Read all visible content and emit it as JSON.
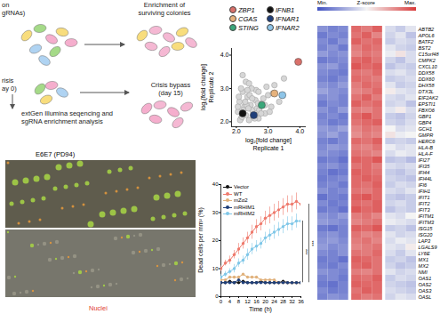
{
  "schematic": {
    "top_left": [
      "on",
      "gRNAs)"
    ],
    "top_right": [
      "Enrichment of",
      "surviving colonies"
    ],
    "mid_left": [
      "risis",
      "ay 0)"
    ],
    "mid_right": [
      "Crisis bypass",
      "(day 15)"
    ],
    "bottom": [
      "extGen Illumina seqencing and",
      "sgRNA enrichment analysis"
    ]
  },
  "image": {
    "title": "E6E7 (PD94)",
    "channel": "Nuclei"
  },
  "chart_data": [
    {
      "type": "scatter",
      "xlabel": [
        "log₂[fold change]",
        "Replicate 1"
      ],
      "ylabel": [
        "log₂[fold change]",
        "Replicate 2"
      ],
      "xlim": [
        1.85,
        4.2
      ],
      "ylim": [
        1.85,
        4.2
      ],
      "xticks": [
        2,
        3,
        4
      ],
      "yticks": [
        2,
        3,
        4
      ],
      "legend": "top",
      "background": {
        "color": "#d6d6d6",
        "x": [
          2.05,
          2.1,
          2.15,
          2.2,
          2.25,
          2.3,
          2.35,
          2.4,
          2.45,
          2.5,
          2.55,
          2.6,
          2.65,
          2.7,
          2.8,
          2.9,
          3.0,
          3.1,
          3.2,
          3.35,
          2.12,
          2.22,
          2.32,
          2.42,
          2.52,
          2.62,
          2.72,
          2.85,
          2.95,
          3.05,
          2.08,
          2.18,
          2.28,
          2.38,
          2.48,
          2.58,
          2.68,
          2.78,
          2.3,
          2.5,
          2.7,
          2.9,
          3.15,
          3.5,
          2.2,
          2.4,
          2.6,
          2.05,
          2.15,
          2.35
        ],
        "y": [
          2.3,
          2.6,
          2.1,
          2.9,
          2.45,
          2.2,
          2.75,
          2.05,
          2.5,
          2.35,
          2.15,
          2.65,
          2.4,
          2.1,
          2.55,
          2.25,
          2.8,
          2.45,
          3.1,
          2.6,
          2.05,
          2.35,
          2.5,
          2.8,
          2.2,
          2.95,
          2.35,
          2.7,
          3.05,
          2.3,
          2.75,
          2.15,
          2.6,
          2.4,
          3.0,
          2.1,
          2.55,
          2.25,
          3.2,
          2.7,
          2.9,
          2.5,
          2.85,
          3.3,
          3.4,
          3.15,
          2.2,
          2.45,
          3.0,
          2.95
        ]
      },
      "highlights": [
        {
          "name": "ZBP1",
          "color": "#d9706a",
          "x": 3.95,
          "y": 3.8
        },
        {
          "name": "CGAS",
          "color": "#e6b27c",
          "x": 3.2,
          "y": 2.85
        },
        {
          "name": "STING",
          "color": "#3aa77a",
          "x": 2.8,
          "y": 2.5
        },
        {
          "name": "IFNB1",
          "color": "#111111",
          "x": 2.2,
          "y": 2.25
        },
        {
          "name": "IFNAR1",
          "color": "#1f3f7a",
          "x": 2.55,
          "y": 2.2
        },
        {
          "name": "IFNAR2",
          "color": "#8ec5e8",
          "x": 3.45,
          "y": 2.8
        }
      ]
    },
    {
      "type": "line",
      "xlabel": "Time (h)",
      "ylabel": "Dead cells per mm² (%)",
      "xlim": [
        0,
        36
      ],
      "ylim": [
        0,
        40
      ],
      "xticks": [
        0,
        4,
        8,
        12,
        16,
        20,
        24,
        28,
        32,
        36
      ],
      "yticks": [
        0,
        10,
        20,
        30,
        40
      ],
      "legend": "top-left",
      "marker": "circle",
      "x": [
        0,
        2,
        4,
        6,
        8,
        10,
        12,
        14,
        16,
        18,
        20,
        22,
        24,
        26,
        28,
        30,
        32,
        34,
        36
      ],
      "series": [
        {
          "name": "Vector",
          "color": "#111111",
          "values": [
            5,
            5,
            5.5,
            5,
            5,
            5.5,
            5,
            5,
            5,
            5.5,
            5,
            5,
            5,
            5,
            5.5,
            5,
            5,
            5,
            5
          ]
        },
        {
          "name": "WT",
          "color": "#ef7a6d",
          "values": [
            10,
            12,
            13,
            15,
            17,
            19,
            21,
            23,
            25,
            26,
            28,
            29,
            30,
            31,
            32,
            33,
            33,
            34,
            33
          ],
          "errors": [
            1,
            1,
            1.5,
            1.5,
            2,
            2,
            2,
            2.5,
            2.5,
            2.5,
            2.5,
            3,
            3,
            3,
            3,
            3,
            3,
            3,
            3
          ]
        },
        {
          "name": "mZα2",
          "color": "#e0b07a",
          "values": [
            6,
            6,
            7,
            7,
            7,
            8,
            7,
            7,
            7,
            6,
            6,
            6,
            6,
            5,
            5,
            5,
            5,
            5,
            5
          ]
        },
        {
          "name": "mRHIM1",
          "color": "#1f3f7a",
          "values": [
            5,
            5,
            5,
            5,
            6,
            5,
            5,
            5,
            5,
            5,
            5,
            5,
            5,
            5,
            5,
            5,
            5,
            5,
            5
          ]
        },
        {
          "name": "mRHIM2",
          "color": "#7fc7e8",
          "values": [
            7,
            8,
            9,
            10,
            12,
            13,
            15,
            17,
            18,
            19,
            21,
            22,
            23,
            24,
            25,
            26,
            26,
            27,
            27
          ],
          "errors": [
            1,
            1,
            1,
            1.5,
            1.5,
            1.5,
            2,
            2,
            2,
            2,
            2,
            2,
            2.5,
            2.5,
            2.5,
            2.5,
            2.5,
            2.5,
            2.5
          ]
        }
      ],
      "significance": [
        {
          "from": "mRHIM2",
          "to": "Vector",
          "label": "***"
        },
        {
          "from": "WT",
          "to": "Vector",
          "label": "***"
        }
      ]
    },
    {
      "type": "heatmap",
      "colorbar": {
        "range": [
          -2,
          2
        ],
        "labels": [
          "Min.",
          "Z-score",
          "Max."
        ]
      },
      "rows": [
        "ABTB2",
        "APOL6",
        "BATF2",
        "BST2",
        "C15orf48",
        "CMPK2",
        "CXCL10",
        "DDX58",
        "DDX60",
        "DHX58",
        "DTX3L",
        "EIF2AK2",
        "EPSTI1",
        "FBXO6",
        "GBP1",
        "GBP4",
        "GCH1",
        "GMPR",
        "HERC6",
        "HLA-B",
        "HLA-F",
        "IFI27",
        "IFI35",
        "IFI44",
        "IFI44L",
        "IFI6",
        "IFIH1",
        "IFIT1",
        "IFIT2",
        "IFIT3",
        "IFITM1",
        "IFITM3",
        "ISG15",
        "ISG20",
        "LAP3",
        "LGALS9",
        "LY6E",
        "MX1",
        "MX2",
        "NMI",
        "OAS1",
        "OAS2",
        "OAS3",
        "OASL"
      ],
      "cells": [
        [
          [
            -1.2,
            -1.4,
            -1.3
          ],
          [
            1.5,
            1.3,
            1.6
          ],
          [
            -0.3,
            -0.5,
            -0.2
          ]
        ],
        [
          [
            -1.5,
            -1.3,
            -1.4
          ],
          [
            1.4,
            1.6,
            1.2
          ],
          [
            -0.4,
            -0.2,
            -0.6
          ]
        ],
        [
          [
            -1.3,
            -1.5,
            -1.2
          ],
          [
            1.6,
            1.4,
            1.5
          ],
          [
            -0.5,
            -0.3,
            -0.4
          ]
        ],
        [
          [
            -1.4,
            -1.2,
            -1.5
          ],
          [
            1.3,
            1.5,
            1.4
          ],
          [
            -0.2,
            -0.4,
            -0.5
          ]
        ],
        [
          [
            -1.1,
            -1.3,
            -1.2
          ],
          [
            1.2,
            1.4,
            1.3
          ],
          [
            -0.1,
            0.2,
            -0.3
          ]
        ],
        [
          [
            -1.5,
            -1.4,
            -1.3
          ],
          [
            1.5,
            1.6,
            1.4
          ],
          [
            -0.4,
            -0.6,
            -0.3
          ]
        ],
        [
          [
            -1.2,
            -1.1,
            -1.4
          ],
          [
            1.7,
            1.5,
            1.6
          ],
          [
            -0.6,
            -0.4,
            -0.5
          ]
        ],
        [
          [
            -1.3,
            -1.4,
            -1.5
          ],
          [
            1.4,
            1.3,
            1.5
          ],
          [
            -0.3,
            -0.2,
            -0.4
          ]
        ],
        [
          [
            -1.4,
            -1.5,
            -1.3
          ],
          [
            1.5,
            1.4,
            1.3
          ],
          [
            -0.5,
            -0.4,
            -0.3
          ]
        ],
        [
          [
            -1.2,
            -1.3,
            -1.1
          ],
          [
            1.3,
            1.5,
            1.4
          ],
          [
            -0.2,
            -0.5,
            -0.4
          ]
        ],
        [
          [
            -1.0,
            -1.2,
            -1.3
          ],
          [
            1.2,
            1.3,
            1.5
          ],
          [
            0.1,
            -0.2,
            -0.3
          ]
        ],
        [
          [
            -1.3,
            -1.2,
            -1.4
          ],
          [
            1.4,
            1.6,
            1.3
          ],
          [
            -0.3,
            -0.4,
            -0.2
          ]
        ],
        [
          [
            -1.5,
            -1.3,
            -1.4
          ],
          [
            1.6,
            1.4,
            1.5
          ],
          [
            -0.4,
            -0.3,
            -0.6
          ]
        ],
        [
          [
            -1.2,
            -1.4,
            -1.1
          ],
          [
            1.3,
            1.2,
            1.4
          ],
          [
            -0.2,
            0.1,
            -0.3
          ]
        ],
        [
          [
            -1.4,
            -1.3,
            -1.5
          ],
          [
            1.5,
            1.7,
            1.4
          ],
          [
            -0.5,
            -0.6,
            -0.4
          ]
        ],
        [
          [
            -1.3,
            -1.5,
            -1.4
          ],
          [
            1.4,
            1.5,
            1.6
          ],
          [
            -0.4,
            -0.5,
            -0.3
          ]
        ],
        [
          [
            -1.1,
            -1.2,
            -1.0
          ],
          [
            1.2,
            1.4,
            1.3
          ],
          [
            0.0,
            -0.3,
            -0.2
          ]
        ],
        [
          [
            -1.2,
            -1.0,
            -1.3
          ],
          [
            1.1,
            1.3,
            1.2
          ],
          [
            0.2,
            -0.1,
            0.0
          ]
        ],
        [
          [
            -1.4,
            -1.5,
            -1.3
          ],
          [
            1.5,
            1.4,
            1.6
          ],
          [
            -0.5,
            -0.4,
            -0.5
          ]
        ],
        [
          [
            -1.3,
            -1.1,
            -1.2
          ],
          [
            1.3,
            1.2,
            1.4
          ],
          [
            -0.1,
            -0.3,
            -0.2
          ]
        ],
        [
          [
            -1.2,
            -1.3,
            -1.4
          ],
          [
            1.4,
            1.3,
            1.2
          ],
          [
            -0.3,
            -0.1,
            -0.2
          ]
        ],
        [
          [
            -1.5,
            -1.4,
            -1.6
          ],
          [
            1.6,
            1.5,
            1.7
          ],
          [
            -0.6,
            -0.5,
            -0.7
          ]
        ],
        [
          [
            -1.3,
            -1.2,
            -1.4
          ],
          [
            1.4,
            1.5,
            1.3
          ],
          [
            -0.3,
            -0.4,
            -0.3
          ]
        ],
        [
          [
            -1.4,
            -1.6,
            -1.5
          ],
          [
            1.6,
            1.5,
            1.4
          ],
          [
            -0.5,
            -0.6,
            -0.4
          ]
        ],
        [
          [
            -1.5,
            -1.4,
            -1.3
          ],
          [
            1.5,
            1.6,
            1.5
          ],
          [
            -0.4,
            -0.5,
            -0.6
          ]
        ],
        [
          [
            -1.4,
            -1.3,
            -1.5
          ],
          [
            1.5,
            1.4,
            1.6
          ],
          [
            -0.5,
            -0.3,
            -0.4
          ]
        ],
        [
          [
            -1.2,
            -1.4,
            -1.3
          ],
          [
            1.4,
            1.3,
            1.5
          ],
          [
            -0.3,
            -0.4,
            -0.2
          ]
        ],
        [
          [
            -1.6,
            -1.4,
            -1.5
          ],
          [
            1.6,
            1.7,
            1.5
          ],
          [
            -0.5,
            -0.6,
            -0.5
          ]
        ],
        [
          [
            -1.3,
            -1.5,
            -1.4
          ],
          [
            1.5,
            1.4,
            1.6
          ],
          [
            -0.4,
            -0.3,
            -0.5
          ]
        ],
        [
          [
            -1.5,
            -1.4,
            -1.6
          ],
          [
            1.7,
            1.5,
            1.6
          ],
          [
            -0.6,
            -0.4,
            -0.5
          ]
        ],
        [
          [
            -1.2,
            -1.3,
            -1.1
          ],
          [
            1.3,
            1.4,
            1.2
          ],
          [
            -0.2,
            -0.3,
            0.0
          ]
        ],
        [
          [
            -1.1,
            -1.2,
            -1.3
          ],
          [
            1.2,
            1.3,
            1.4
          ],
          [
            -0.1,
            -0.2,
            -0.3
          ]
        ],
        [
          [
            -1.5,
            -1.6,
            -1.4
          ],
          [
            1.6,
            1.5,
            1.7
          ],
          [
            -0.5,
            -0.4,
            -0.6
          ]
        ],
        [
          [
            -1.3,
            -1.2,
            -1.4
          ],
          [
            1.4,
            1.2,
            1.3
          ],
          [
            -0.2,
            -0.4,
            -0.3
          ]
        ],
        [
          [
            -1.2,
            -1.1,
            -1.3
          ],
          [
            1.3,
            1.4,
            1.2
          ],
          [
            -0.3,
            -0.1,
            -0.2
          ]
        ],
        [
          [
            -1.1,
            -1.3,
            -1.2
          ],
          [
            1.2,
            1.3,
            1.4
          ],
          [
            -0.2,
            -0.3,
            0.1
          ]
        ],
        [
          [
            -1.3,
            -1.4,
            -1.2
          ],
          [
            1.4,
            1.3,
            1.5
          ],
          [
            -0.3,
            -0.5,
            -0.2
          ]
        ],
        [
          [
            -1.5,
            -1.4,
            -1.6
          ],
          [
            1.6,
            1.5,
            1.4
          ],
          [
            -0.5,
            -0.4,
            -0.6
          ]
        ],
        [
          [
            -1.4,
            -1.5,
            -1.3
          ],
          [
            1.5,
            1.6,
            1.4
          ],
          [
            -0.4,
            -0.6,
            -0.5
          ]
        ],
        [
          [
            -1.2,
            -1.3,
            -1.4
          ],
          [
            1.3,
            1.2,
            1.4
          ],
          [
            -0.2,
            -0.4,
            -0.3
          ]
        ],
        [
          [
            -1.4,
            -1.3,
            -1.5
          ],
          [
            1.5,
            1.4,
            1.6
          ],
          [
            -0.5,
            -0.3,
            -0.4
          ]
        ],
        [
          [
            -1.5,
            -1.6,
            -1.4
          ],
          [
            1.6,
            1.5,
            1.5
          ],
          [
            -0.4,
            -0.5,
            -0.6
          ]
        ],
        [
          [
            -1.3,
            -1.5,
            -1.4
          ],
          [
            1.4,
            1.6,
            1.5
          ],
          [
            -0.3,
            -0.4,
            -0.5
          ]
        ],
        [
          [
            -1.4,
            -1.2,
            -1.3
          ],
          [
            1.5,
            1.3,
            1.4
          ],
          [
            -0.4,
            -0.2,
            -0.3
          ]
        ]
      ]
    }
  ]
}
